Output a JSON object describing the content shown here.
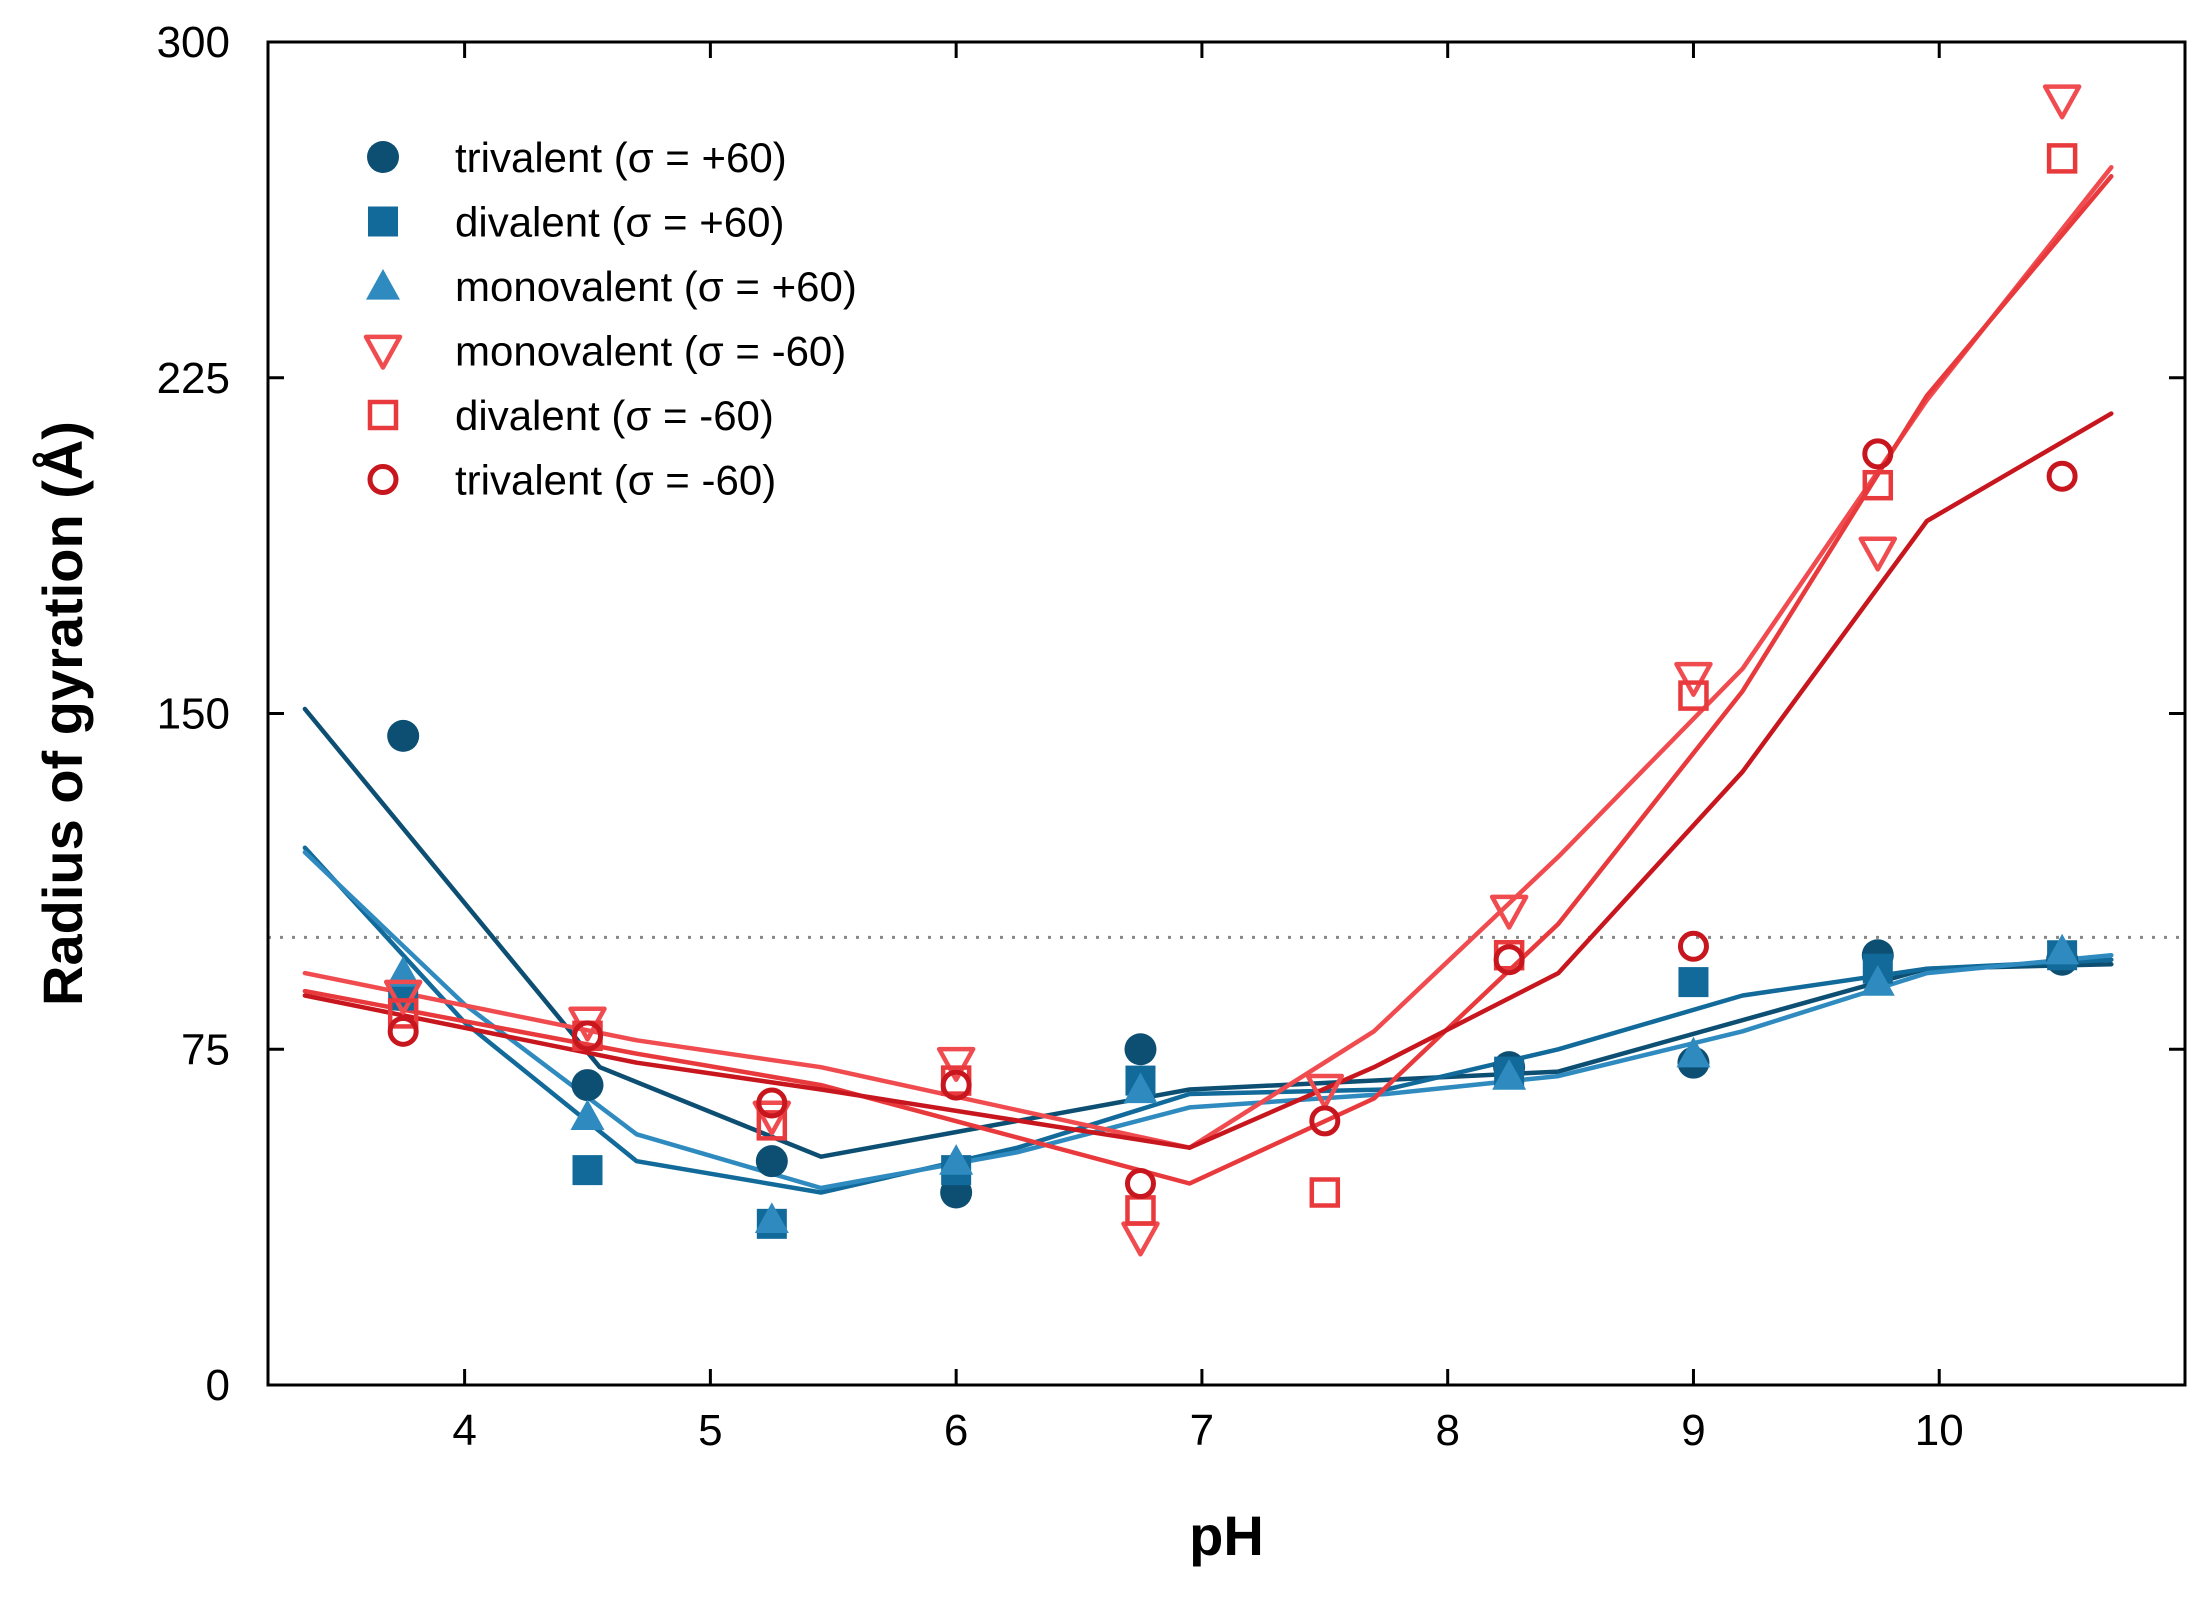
{
  "chart_data": {
    "type": "scatter",
    "xlabel": "pH",
    "ylabel": "Radius of gyration (Å)",
    "xlim": [
      3.2,
      11.0
    ],
    "ylim": [
      0,
      300
    ],
    "x_ticks": [
      4,
      5,
      6,
      7,
      8,
      9,
      10
    ],
    "y_ticks": [
      0,
      75,
      150,
      225,
      300
    ],
    "reference_line": {
      "y": 100,
      "style": "dotted",
      "color": "#888888"
    },
    "legend_position": "top-left",
    "series": [
      {
        "name": "trivalent (σ = +60)",
        "color": "#0d4f73",
        "marker": "filled-circle",
        "points": [
          [
            3.75,
            145
          ],
          [
            4.5,
            67
          ],
          [
            5.25,
            50
          ],
          [
            6.0,
            43
          ],
          [
            6.75,
            75
          ],
          [
            8.25,
            71
          ],
          [
            9.0,
            72
          ],
          [
            9.75,
            96
          ],
          [
            10.5,
            95
          ]
        ],
        "line": [
          [
            3.35,
            151
          ],
          [
            4.55,
            71
          ],
          [
            5.45,
            51
          ],
          [
            6.95,
            66
          ],
          [
            8.45,
            70
          ],
          [
            9.95,
            93
          ],
          [
            10.7,
            94
          ]
        ]
      },
      {
        "name": "divalent (σ = +60)",
        "color": "#116a9a",
        "marker": "filled-square",
        "points": [
          [
            3.75,
            87
          ],
          [
            4.5,
            48
          ],
          [
            5.25,
            36
          ],
          [
            6.0,
            48
          ],
          [
            6.75,
            68
          ],
          [
            8.25,
            70
          ],
          [
            9.0,
            90
          ],
          [
            9.75,
            93
          ],
          [
            10.5,
            96
          ]
        ],
        "line": [
          [
            3.35,
            120
          ],
          [
            4.0,
            81
          ],
          [
            4.7,
            50
          ],
          [
            5.45,
            43
          ],
          [
            6.25,
            53
          ],
          [
            6.95,
            65
          ],
          [
            7.75,
            66
          ],
          [
            8.45,
            75
          ],
          [
            9.2,
            87
          ],
          [
            9.95,
            93
          ],
          [
            10.7,
            95
          ]
        ]
      },
      {
        "name": "monovalent (σ = +60)",
        "color": "#2f8bbf",
        "marker": "filled-triangle",
        "points": [
          [
            3.75,
            92
          ],
          [
            4.5,
            60
          ],
          [
            5.25,
            37
          ],
          [
            6.0,
            50
          ],
          [
            6.75,
            66
          ],
          [
            8.25,
            69
          ],
          [
            9.0,
            74
          ],
          [
            9.75,
            90
          ],
          [
            10.5,
            97
          ]
        ],
        "line": [
          [
            3.35,
            119
          ],
          [
            4.0,
            85
          ],
          [
            4.7,
            56
          ],
          [
            5.45,
            44
          ],
          [
            6.25,
            52
          ],
          [
            6.95,
            62
          ],
          [
            7.75,
            65
          ],
          [
            8.45,
            69
          ],
          [
            9.2,
            79
          ],
          [
            9.95,
            92
          ],
          [
            10.7,
            96
          ]
        ]
      },
      {
        "name": "monovalent (σ = -60)",
        "color": "#f04c50",
        "marker": "open-down-triangle",
        "points": [
          [
            3.75,
            87
          ],
          [
            4.5,
            81
          ],
          [
            5.25,
            60
          ],
          [
            6.0,
            72
          ],
          [
            6.75,
            33
          ],
          [
            7.5,
            66
          ],
          [
            8.25,
            106
          ],
          [
            9.0,
            158
          ],
          [
            9.75,
            186
          ],
          [
            10.5,
            287
          ]
        ],
        "line": [
          [
            3.35,
            92
          ],
          [
            4.7,
            77
          ],
          [
            5.45,
            71
          ],
          [
            6.95,
            53
          ],
          [
            7.7,
            79
          ],
          [
            8.45,
            118
          ],
          [
            9.2,
            160
          ],
          [
            9.95,
            220
          ],
          [
            10.7,
            272
          ]
        ]
      },
      {
        "name": "divalent (σ = -60)",
        "color": "#e83a3d",
        "marker": "open-square",
        "points": [
          [
            3.75,
            83
          ],
          [
            4.5,
            78
          ],
          [
            5.25,
            58
          ],
          [
            6.0,
            68
          ],
          [
            6.75,
            39
          ],
          [
            7.5,
            43
          ],
          [
            8.25,
            96
          ],
          [
            9.0,
            154
          ],
          [
            9.75,
            201
          ],
          [
            10.5,
            274
          ]
        ],
        "line": [
          [
            3.35,
            88
          ],
          [
            4.7,
            74
          ],
          [
            5.45,
            67
          ],
          [
            6.95,
            45
          ],
          [
            7.7,
            64
          ],
          [
            8.45,
            103
          ],
          [
            9.2,
            155
          ],
          [
            9.95,
            221
          ],
          [
            10.7,
            270
          ]
        ]
      },
      {
        "name": "trivalent (σ = -60)",
        "color": "#c8161e",
        "marker": "open-circle",
        "points": [
          [
            3.75,
            79
          ],
          [
            4.5,
            78
          ],
          [
            5.25,
            63
          ],
          [
            6.0,
            67
          ],
          [
            6.75,
            45
          ],
          [
            7.5,
            59
          ],
          [
            8.25,
            95
          ],
          [
            9.0,
            98
          ],
          [
            9.75,
            208
          ],
          [
            10.5,
            203
          ]
        ],
        "line": [
          [
            3.35,
            87
          ],
          [
            4.7,
            72
          ],
          [
            5.45,
            66
          ],
          [
            6.95,
            53
          ],
          [
            7.7,
            71
          ],
          [
            8.45,
            92
          ],
          [
            9.2,
            137
          ],
          [
            9.95,
            193
          ],
          [
            10.7,
            217
          ]
        ]
      }
    ]
  }
}
